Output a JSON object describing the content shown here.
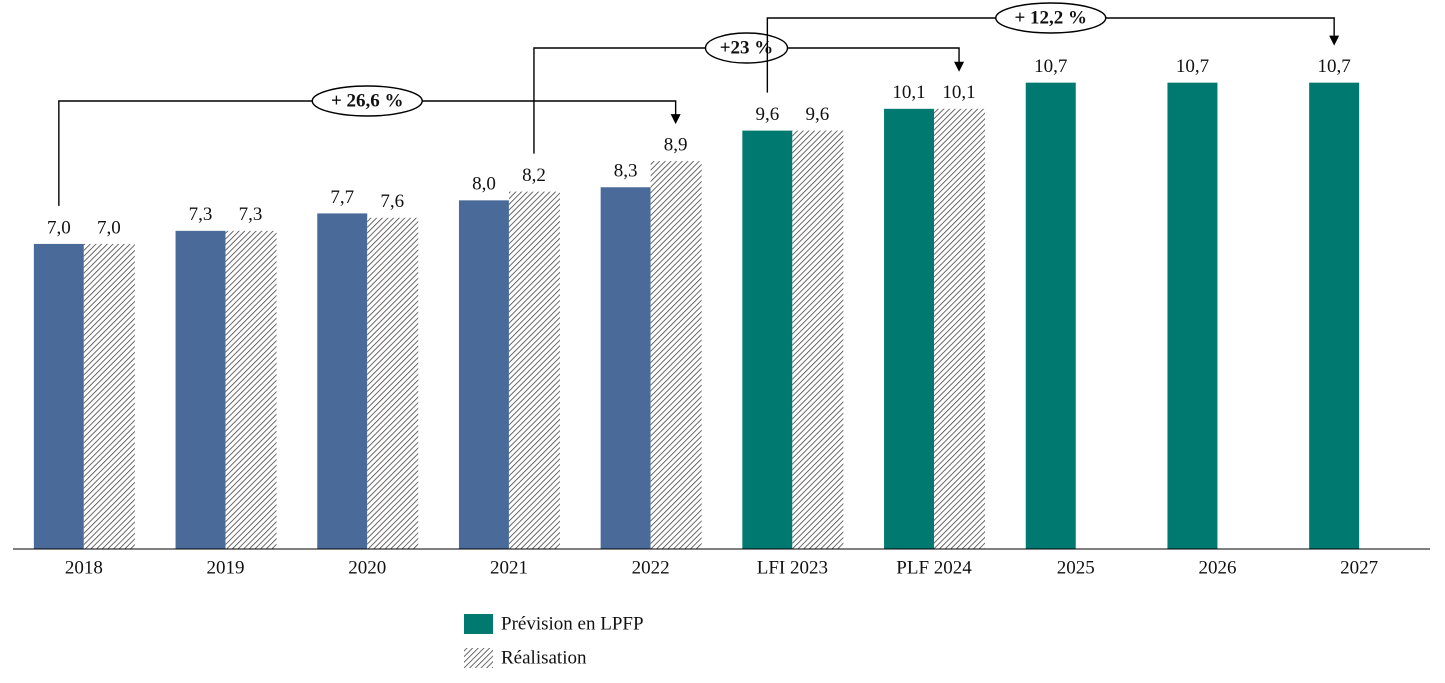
{
  "chart_data": {
    "type": "bar",
    "categories": [
      "2018",
      "2019",
      "2020",
      "2021",
      "2022",
      "LFI 2023",
      "PLF 2024",
      "2025",
      "2026",
      "2027"
    ],
    "series": [
      {
        "name": "Prévision en LPFP",
        "color": "#007a70",
        "colors": [
          "#4a6a9a",
          "#4a6a9a",
          "#4a6a9a",
          "#4a6a9a",
          "#4a6a9a",
          "#007a70",
          "#007a70",
          "#007a70",
          "#007a70",
          "#007a70"
        ],
        "values": [
          7.0,
          7.3,
          7.7,
          8.0,
          8.3,
          9.6,
          10.1,
          10.7,
          10.7,
          10.7
        ],
        "value_labels": [
          "7,0",
          "7,3",
          "7,7",
          "8,0",
          "8,3",
          "9,6",
          "10,1",
          "10,7",
          "10,7",
          "10,7"
        ]
      },
      {
        "name": "Réalisation",
        "color": "hatch",
        "values": [
          7.0,
          7.3,
          7.6,
          8.2,
          8.9,
          9.6,
          10.1,
          null,
          null,
          null
        ],
        "value_labels": [
          "7,0",
          "7,3",
          "7,6",
          "8,2",
          "8,9",
          "9,6",
          "10,1",
          null,
          null,
          null
        ]
      }
    ],
    "annotations": [
      {
        "text": "+ 26,6 %"
      },
      {
        "text": "+23 %"
      },
      {
        "text": "+ 12,2 %"
      }
    ],
    "ylim": [
      0,
      12
    ],
    "grid": false
  }
}
